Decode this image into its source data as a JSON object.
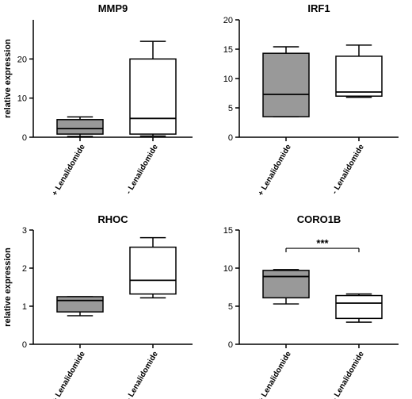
{
  "chart_data": [
    {
      "type": "boxplot",
      "title": "MMP9",
      "ylabel": "relative expression",
      "ylim": [
        0,
        30
      ],
      "yticks": [
        0,
        10,
        20
      ],
      "categories": [
        "+ Lenalidomide",
        "- Lenalidomide"
      ],
      "boxes": [
        {
          "fill": "#999999",
          "min": 0.2,
          "q1": 0.8,
          "median": 2.2,
          "q3": 4.5,
          "max": 5.2
        },
        {
          "fill": "#ffffff",
          "min": 0.3,
          "q1": 0.8,
          "median": 4.8,
          "q3": 20.0,
          "max": 24.5
        }
      ],
      "significance": null
    },
    {
      "type": "boxplot",
      "title": "IRF1",
      "ylabel": "",
      "ylim": [
        0,
        20
      ],
      "yticks": [
        0,
        5,
        10,
        15,
        20
      ],
      "categories": [
        "+ Lenalidomide",
        "- Lenalidomide"
      ],
      "boxes": [
        {
          "fill": "#999999",
          "min": 3.5,
          "q1": 3.5,
          "median": 7.3,
          "q3": 14.3,
          "max": 15.4
        },
        {
          "fill": "#ffffff",
          "min": 6.8,
          "q1": 7.0,
          "median": 7.7,
          "q3": 13.8,
          "max": 15.7
        }
      ],
      "significance": null
    },
    {
      "type": "boxplot",
      "title": "RHOC",
      "ylabel": "relative expression",
      "ylim": [
        0,
        3
      ],
      "yticks": [
        0,
        1,
        2,
        3
      ],
      "categories": [
        "+ Lenalidomide",
        "- Lenalidomide"
      ],
      "boxes": [
        {
          "fill": "#999999",
          "min": 0.75,
          "q1": 0.85,
          "median": 1.15,
          "q3": 1.25,
          "max": 1.25
        },
        {
          "fill": "#ffffff",
          "min": 1.22,
          "q1": 1.32,
          "median": 1.68,
          "q3": 2.55,
          "max": 2.8
        }
      ],
      "significance": null
    },
    {
      "type": "boxplot",
      "title": "CORO1B",
      "ylabel": "",
      "ylim": [
        0,
        15
      ],
      "yticks": [
        0,
        5,
        10,
        15
      ],
      "categories": [
        "+ Lenalidomide",
        "- Lenalidomide"
      ],
      "boxes": [
        {
          "fill": "#999999",
          "min": 5.3,
          "q1": 6.1,
          "median": 8.9,
          "q3": 9.7,
          "max": 9.8
        },
        {
          "fill": "#ffffff",
          "min": 2.9,
          "q1": 3.4,
          "median": 5.4,
          "q3": 6.4,
          "max": 6.6
        }
      ],
      "significance": {
        "label": "***",
        "y": 12.6
      }
    }
  ]
}
